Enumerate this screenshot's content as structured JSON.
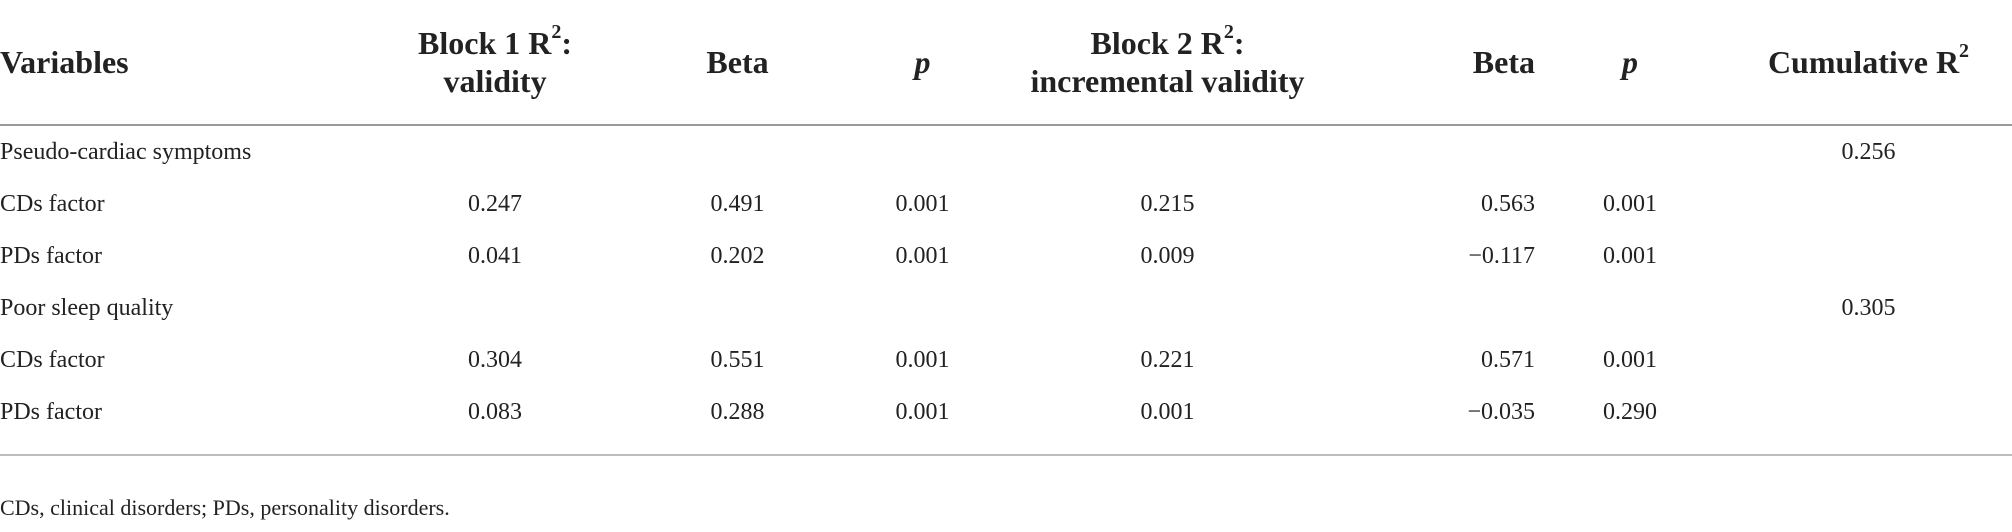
{
  "headers": {
    "variables": "Variables",
    "block1_line1": "Block 1 R",
    "block1_sup": "2",
    "block1_colon": ":",
    "block1_line2": "validity",
    "beta1": "Beta",
    "p1": "p",
    "block2_line1": "Block 2 R",
    "block2_sup": "2",
    "block2_colon": ":",
    "block2_line2": "incremental validity",
    "beta2": "Beta",
    "p2": "p",
    "cumulative": "Cumulative R",
    "cumulative_sup": "2"
  },
  "rows": [
    {
      "label": "Pseudo-cardiac symptoms",
      "b1r2": "",
      "beta1": "",
      "p1": "",
      "b2r2": "",
      "beta2": "",
      "p2": "",
      "cum": "0.256"
    },
    {
      "label": "CDs factor",
      "b1r2": "0.247",
      "beta1": "0.491",
      "p1": "0.001",
      "b2r2": "0.215",
      "beta2": "0.563",
      "p2": "0.001",
      "cum": ""
    },
    {
      "label": "PDs factor",
      "b1r2": "0.041",
      "beta1": "0.202",
      "p1": "0.001",
      "b2r2": "0.009",
      "beta2": "−0.117",
      "p2": "0.001",
      "cum": ""
    },
    {
      "label": "Poor sleep quality",
      "b1r2": "",
      "beta1": "",
      "p1": "",
      "b2r2": "",
      "beta2": "",
      "p2": "",
      "cum": "0.305"
    },
    {
      "label": "CDs factor",
      "b1r2": "0.304",
      "beta1": "0.551",
      "p1": "0.001",
      "b2r2": "0.221",
      "beta2": "0.571",
      "p2": "0.001",
      "cum": ""
    },
    {
      "label": "PDs factor",
      "b1r2": "0.083",
      "beta1": "0.288",
      "p1": "0.001",
      "b2r2": "0.001",
      "beta2": "−0.035",
      "p2": "0.290",
      "cum": ""
    }
  ],
  "footnote": "CDs, clinical disorders; PDs, personality disorders."
}
